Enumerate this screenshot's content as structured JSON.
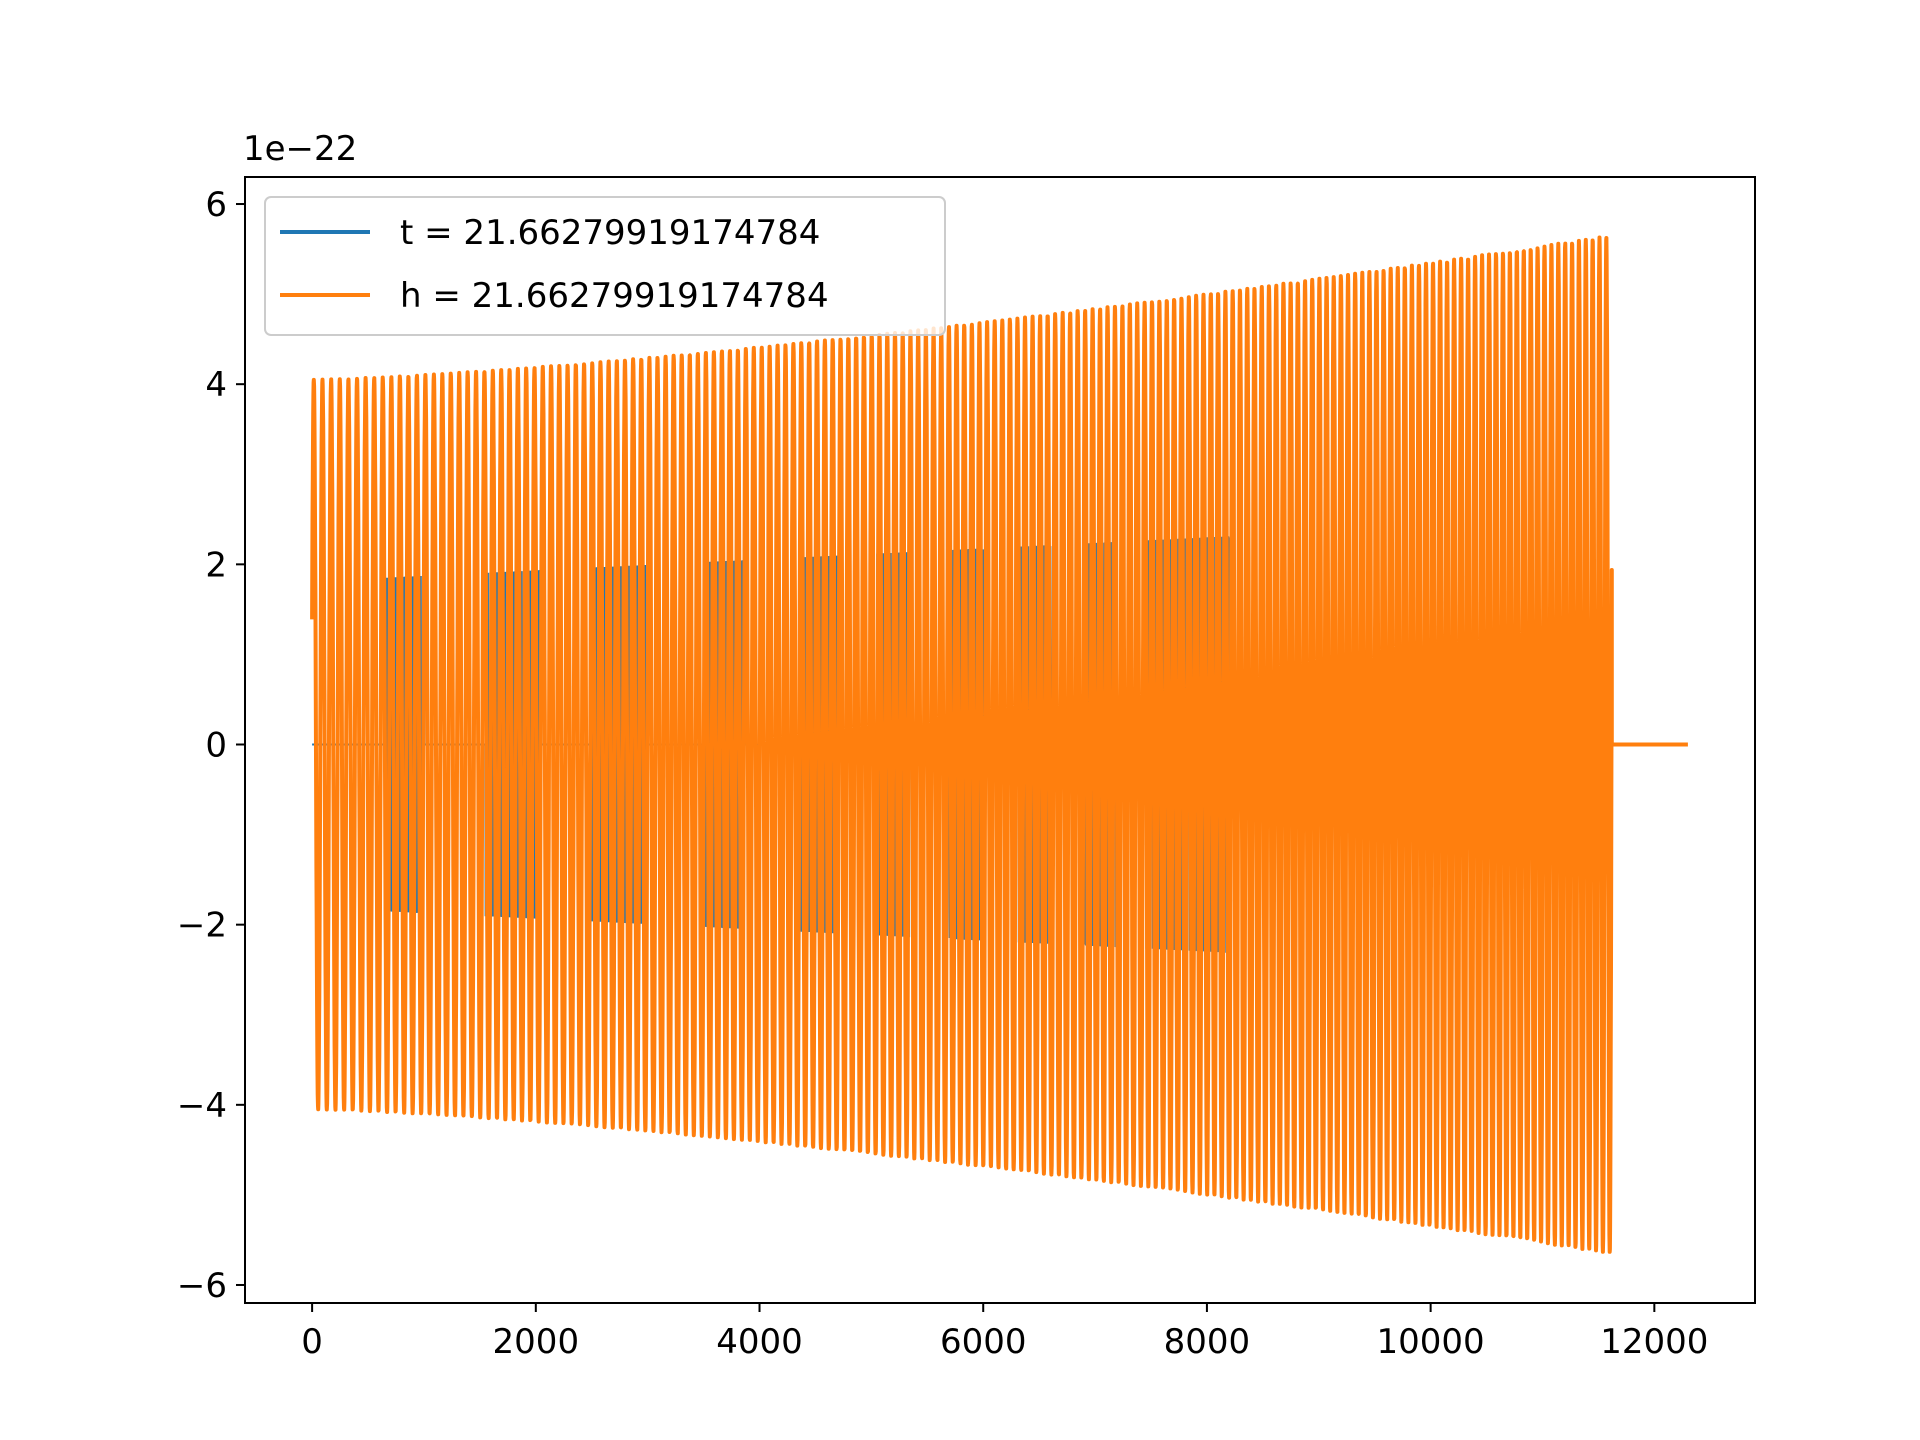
{
  "chart_data": {
    "type": "line",
    "title": "",
    "xlabel": "",
    "ylabel": "",
    "xlim": [
      -600,
      12900
    ],
    "ylim": [
      -6.2,
      6.3
    ],
    "y_offset_label": "1e−22",
    "x_ticks": [
      0,
      2000,
      4000,
      6000,
      8000,
      10000,
      12000
    ],
    "x_tick_labels": [
      "0",
      "2000",
      "4000",
      "6000",
      "8000",
      "10000",
      "12000"
    ],
    "y_ticks": [
      -6,
      -4,
      -2,
      0,
      2,
      4,
      6
    ],
    "y_tick_labels": [
      "−6",
      "−4",
      "−2",
      "0",
      "2",
      "4",
      "6"
    ],
    "grid": false,
    "legend_position": "upper-left",
    "series": [
      {
        "name": "t = 21.66279919174784",
        "color": "#1f77b4",
        "kind": "chirp-bursts",
        "x_start": 0,
        "x_end": 8200,
        "amplitude_start": 1.8,
        "amplitude_end": 2.3,
        "burst_starts": [
          650,
          1550,
          2500,
          3500,
          4350,
          5050,
          5700,
          6300,
          6900,
          7450
        ],
        "burst_ends": [
          1000,
          2050,
          3000,
          3850,
          4700,
          5350,
          6000,
          6600,
          7200,
          8200
        ]
      },
      {
        "name": "h = 21.66279919174784",
        "color": "#ff7f0e",
        "kind": "chirp",
        "x_start": 0,
        "x_end": 11620,
        "tail_end": 12300,
        "amplitude_start": 4.05,
        "amplitude_end": 5.65,
        "cycles": 170
      }
    ]
  },
  "legend": {
    "entries": [
      {
        "label": "t = 21.66279919174784",
        "color": "#1f77b4"
      },
      {
        "label": "h = 21.66279919174784",
        "color": "#ff7f0e"
      }
    ]
  }
}
